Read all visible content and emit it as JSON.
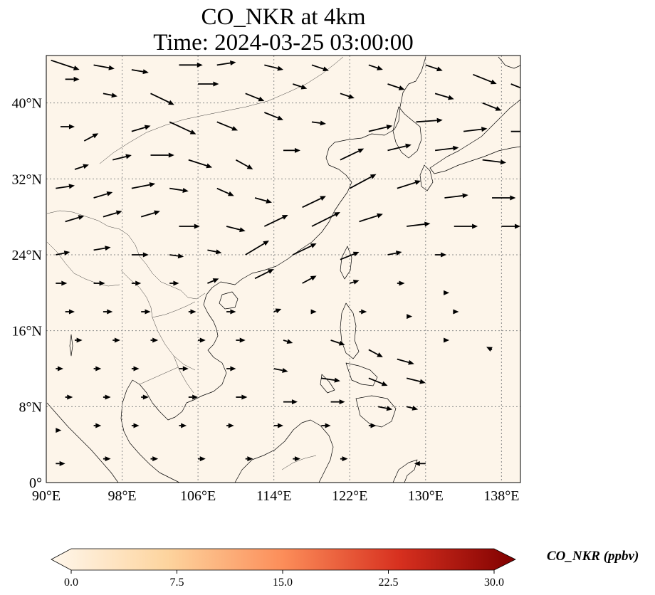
{
  "title": {
    "line1": "CO_NKR at 4km",
    "line2": "Time: 2024-03-25 03:00:00"
  },
  "map": {
    "field_color": "#fdf5ea",
    "gridline_color": "#8a8a8a",
    "coastline_color": "#000000",
    "extent": {
      "lon_min": 90,
      "lon_max": 140,
      "lat_min": 0,
      "lat_max": 45
    },
    "lon_ticks": [
      {
        "value": 90,
        "label": "90°E"
      },
      {
        "value": 98,
        "label": "98°E"
      },
      {
        "value": 106,
        "label": "106°E"
      },
      {
        "value": 114,
        "label": "114°E"
      },
      {
        "value": 122,
        "label": "122°E"
      },
      {
        "value": 130,
        "label": "130°E"
      },
      {
        "value": 138,
        "label": "138°E"
      }
    ],
    "lat_ticks": [
      {
        "value": 0,
        "label": "0°"
      },
      {
        "value": 8,
        "label": "8°N"
      },
      {
        "value": 16,
        "label": "16°N"
      },
      {
        "value": 24,
        "label": "24°N"
      },
      {
        "value": 32,
        "label": "32°N"
      },
      {
        "value": 40,
        "label": "40°N"
      }
    ]
  },
  "wind_vectors": {
    "color": "#000000",
    "note_units": "lon/lat, u/v in degrees of displacement",
    "vectors": [
      [
        90.5,
        44.5,
        3.0,
        -1.0
      ],
      [
        95,
        44,
        2.2,
        -0.4
      ],
      [
        99,
        43.5,
        1.8,
        -0.3
      ],
      [
        104,
        44,
        2.5,
        0
      ],
      [
        108,
        44,
        2.0,
        0.3
      ],
      [
        113,
        44,
        2.0,
        -0.5
      ],
      [
        118,
        44,
        1.8,
        -0.6
      ],
      [
        124,
        44,
        1.5,
        -0.5
      ],
      [
        130,
        44,
        1.8,
        -0.6
      ],
      [
        135,
        43,
        2.5,
        -1.0
      ],
      [
        139,
        42,
        2.5,
        -1.0
      ],
      [
        92,
        42.5,
        1.5,
        0
      ],
      [
        96,
        41,
        1.5,
        -0.3
      ],
      [
        101,
        41,
        2.5,
        -1.2
      ],
      [
        106,
        42,
        2.2,
        0
      ],
      [
        111,
        41,
        2.0,
        -0.8
      ],
      [
        116,
        42,
        1.5,
        -0.5
      ],
      [
        121,
        41,
        1.5,
        -0.5
      ],
      [
        126,
        42,
        1.8,
        -0.6
      ],
      [
        131,
        41,
        2.0,
        -0.6
      ],
      [
        136,
        40,
        2.0,
        -0.8
      ],
      [
        91.5,
        37.5,
        1.5,
        0
      ],
      [
        94,
        36,
        1.5,
        0.8
      ],
      [
        99,
        37,
        2.0,
        0.6
      ],
      [
        103,
        38,
        2.8,
        -1.3
      ],
      [
        108,
        38,
        2.2,
        -0.9
      ],
      [
        113,
        39,
        2.0,
        -0.8
      ],
      [
        118,
        38,
        1.5,
        -0.2
      ],
      [
        124,
        37,
        2.5,
        0.6
      ],
      [
        129,
        38,
        2.8,
        0.2
      ],
      [
        134,
        37,
        2.5,
        0.3
      ],
      [
        139,
        37,
        2.5,
        0
      ],
      [
        93,
        33,
        1.5,
        0.5
      ],
      [
        97,
        34,
        2.0,
        0.5
      ],
      [
        101,
        34.5,
        2.5,
        0
      ],
      [
        105,
        34,
        2.5,
        -0.8
      ],
      [
        110,
        34,
        1.8,
        -1.0
      ],
      [
        115,
        35,
        1.8,
        0
      ],
      [
        121,
        34,
        2.5,
        1.2
      ],
      [
        126,
        35,
        2.5,
        0.6
      ],
      [
        131,
        35,
        2.5,
        0.3
      ],
      [
        136,
        34,
        2.5,
        -0.3
      ],
      [
        91,
        31,
        2.0,
        0.3
      ],
      [
        95,
        30,
        2.0,
        0.6
      ],
      [
        99,
        31,
        2.5,
        0.5
      ],
      [
        103,
        31,
        2.0,
        -0.3
      ],
      [
        108,
        31,
        1.8,
        -0.8
      ],
      [
        112,
        30,
        1.8,
        -0.5
      ],
      [
        117,
        29,
        2.5,
        1.2
      ],
      [
        122,
        31,
        2.8,
        1.5
      ],
      [
        127,
        31,
        2.5,
        0.8
      ],
      [
        132,
        30,
        2.5,
        0.3
      ],
      [
        137,
        30,
        2.5,
        0
      ],
      [
        92,
        27.5,
        2.0,
        0.6
      ],
      [
        96,
        28,
        2.0,
        0.6
      ],
      [
        100,
        28,
        2.0,
        0.6
      ],
      [
        104,
        27,
        2.2,
        0
      ],
      [
        109,
        27,
        2.0,
        -0.5
      ],
      [
        113,
        27,
        2.5,
        1.2
      ],
      [
        118,
        27,
        3.0,
        1.5
      ],
      [
        123,
        27.5,
        2.5,
        0.8
      ],
      [
        128,
        27,
        2.5,
        0.3
      ],
      [
        133,
        27,
        2.5,
        0
      ],
      [
        138,
        27,
        2.0,
        0
      ],
      [
        91,
        24,
        1.5,
        0.3
      ],
      [
        95,
        24.5,
        1.8,
        0.3
      ],
      [
        99,
        24,
        1.8,
        0
      ],
      [
        103,
        24,
        1.5,
        -0.2
      ],
      [
        107,
        24.5,
        1.5,
        -0.3
      ],
      [
        111,
        24,
        2.5,
        1.5
      ],
      [
        116,
        24,
        2.5,
        1.2
      ],
      [
        121,
        23.5,
        2.0,
        0.8
      ],
      [
        126,
        24,
        1.5,
        0.3
      ],
      [
        131,
        24,
        1.2,
        0
      ],
      [
        91,
        21,
        1.2,
        0
      ],
      [
        95,
        21,
        1.2,
        0
      ],
      [
        99,
        21,
        1.0,
        0
      ],
      [
        103,
        21,
        1.0,
        0
      ],
      [
        107,
        21,
        1.2,
        0.5
      ],
      [
        112,
        21.5,
        2.0,
        1.0
      ],
      [
        117,
        21,
        1.5,
        0.8
      ],
      [
        122,
        21,
        1.0,
        0.3
      ],
      [
        127,
        21,
        0.8,
        0
      ],
      [
        132,
        20,
        0.5,
        0
      ],
      [
        92,
        18,
        1.0,
        0
      ],
      [
        96,
        18,
        1.0,
        0
      ],
      [
        100,
        18,
        1.0,
        0
      ],
      [
        105,
        18,
        0.8,
        0
      ],
      [
        109,
        18,
        1.0,
        0
      ],
      [
        114,
        18,
        0.8,
        0.3
      ],
      [
        118,
        18,
        0.5,
        0
      ],
      [
        123,
        18,
        0.8,
        0
      ],
      [
        128,
        17.5,
        0.6,
        0
      ],
      [
        133,
        18,
        0.5,
        0
      ],
      [
        93,
        15,
        0.8,
        0
      ],
      [
        97,
        15,
        0.8,
        0
      ],
      [
        101,
        15,
        0.8,
        0
      ],
      [
        106,
        15,
        0.8,
        0
      ],
      [
        110,
        15,
        1.0,
        0
      ],
      [
        115,
        15,
        1.0,
        -0.3
      ],
      [
        120,
        15,
        1.5,
        -0.5
      ],
      [
        124,
        14,
        1.5,
        -0.8
      ],
      [
        127,
        13,
        1.8,
        -0.5
      ],
      [
        132,
        15,
        0.5,
        0
      ],
      [
        137,
        14,
        -0.6,
        0.3
      ],
      [
        91,
        12,
        0.8,
        0
      ],
      [
        95,
        12,
        0.8,
        0
      ],
      [
        99,
        12,
        0.8,
        0
      ],
      [
        104,
        12,
        1.0,
        0
      ],
      [
        109,
        12,
        1.0,
        0
      ],
      [
        114,
        12,
        1.5,
        -0.3
      ],
      [
        119,
        11,
        2.0,
        -0.3
      ],
      [
        124,
        11,
        2.0,
        -0.8
      ],
      [
        128,
        11,
        2.0,
        -0.5
      ],
      [
        92,
        9,
        0.8,
        0
      ],
      [
        96,
        9,
        0.8,
        0
      ],
      [
        100,
        9,
        0.8,
        0
      ],
      [
        105,
        9,
        1.0,
        0
      ],
      [
        110,
        9,
        1.2,
        0
      ],
      [
        115,
        8.5,
        1.5,
        0
      ],
      [
        120,
        8.5,
        1.5,
        0
      ],
      [
        125,
        8,
        1.5,
        -0.3
      ],
      [
        128,
        8,
        1.2,
        -0.3
      ],
      [
        91,
        5.5,
        0.6,
        0
      ],
      [
        95,
        6,
        0.8,
        0
      ],
      [
        99,
        6,
        0.8,
        0
      ],
      [
        104,
        6,
        0.8,
        0
      ],
      [
        109,
        6,
        0.8,
        0
      ],
      [
        114,
        6,
        1.0,
        0
      ],
      [
        119,
        6,
        1.0,
        0
      ],
      [
        124,
        6,
        0.8,
        0
      ],
      [
        91,
        2,
        1.0,
        0
      ],
      [
        96,
        2.5,
        0.8,
        0
      ],
      [
        101,
        2.5,
        0.8,
        0
      ],
      [
        106,
        2.5,
        0.8,
        0
      ],
      [
        111,
        2.5,
        0.8,
        0
      ],
      [
        116,
        2.5,
        0.8,
        0
      ],
      [
        121,
        2.5,
        0.8,
        0
      ],
      [
        130,
        2,
        -1.2,
        0
      ]
    ]
  },
  "colorbar": {
    "label": "CO_NKR (ppbv)",
    "min": 0,
    "max": 30,
    "ticks": [
      {
        "value": 0,
        "label": "0.0"
      },
      {
        "value": 7.5,
        "label": "7.5"
      },
      {
        "value": 15,
        "label": "15.0"
      },
      {
        "value": 22.5,
        "label": "22.5"
      },
      {
        "value": 30,
        "label": "30.0"
      }
    ],
    "colormap_name": "OrRd",
    "stops": [
      "#fff7ec",
      "#fdd49e",
      "#fc8d59",
      "#d7301f",
      "#7f0000"
    ]
  }
}
